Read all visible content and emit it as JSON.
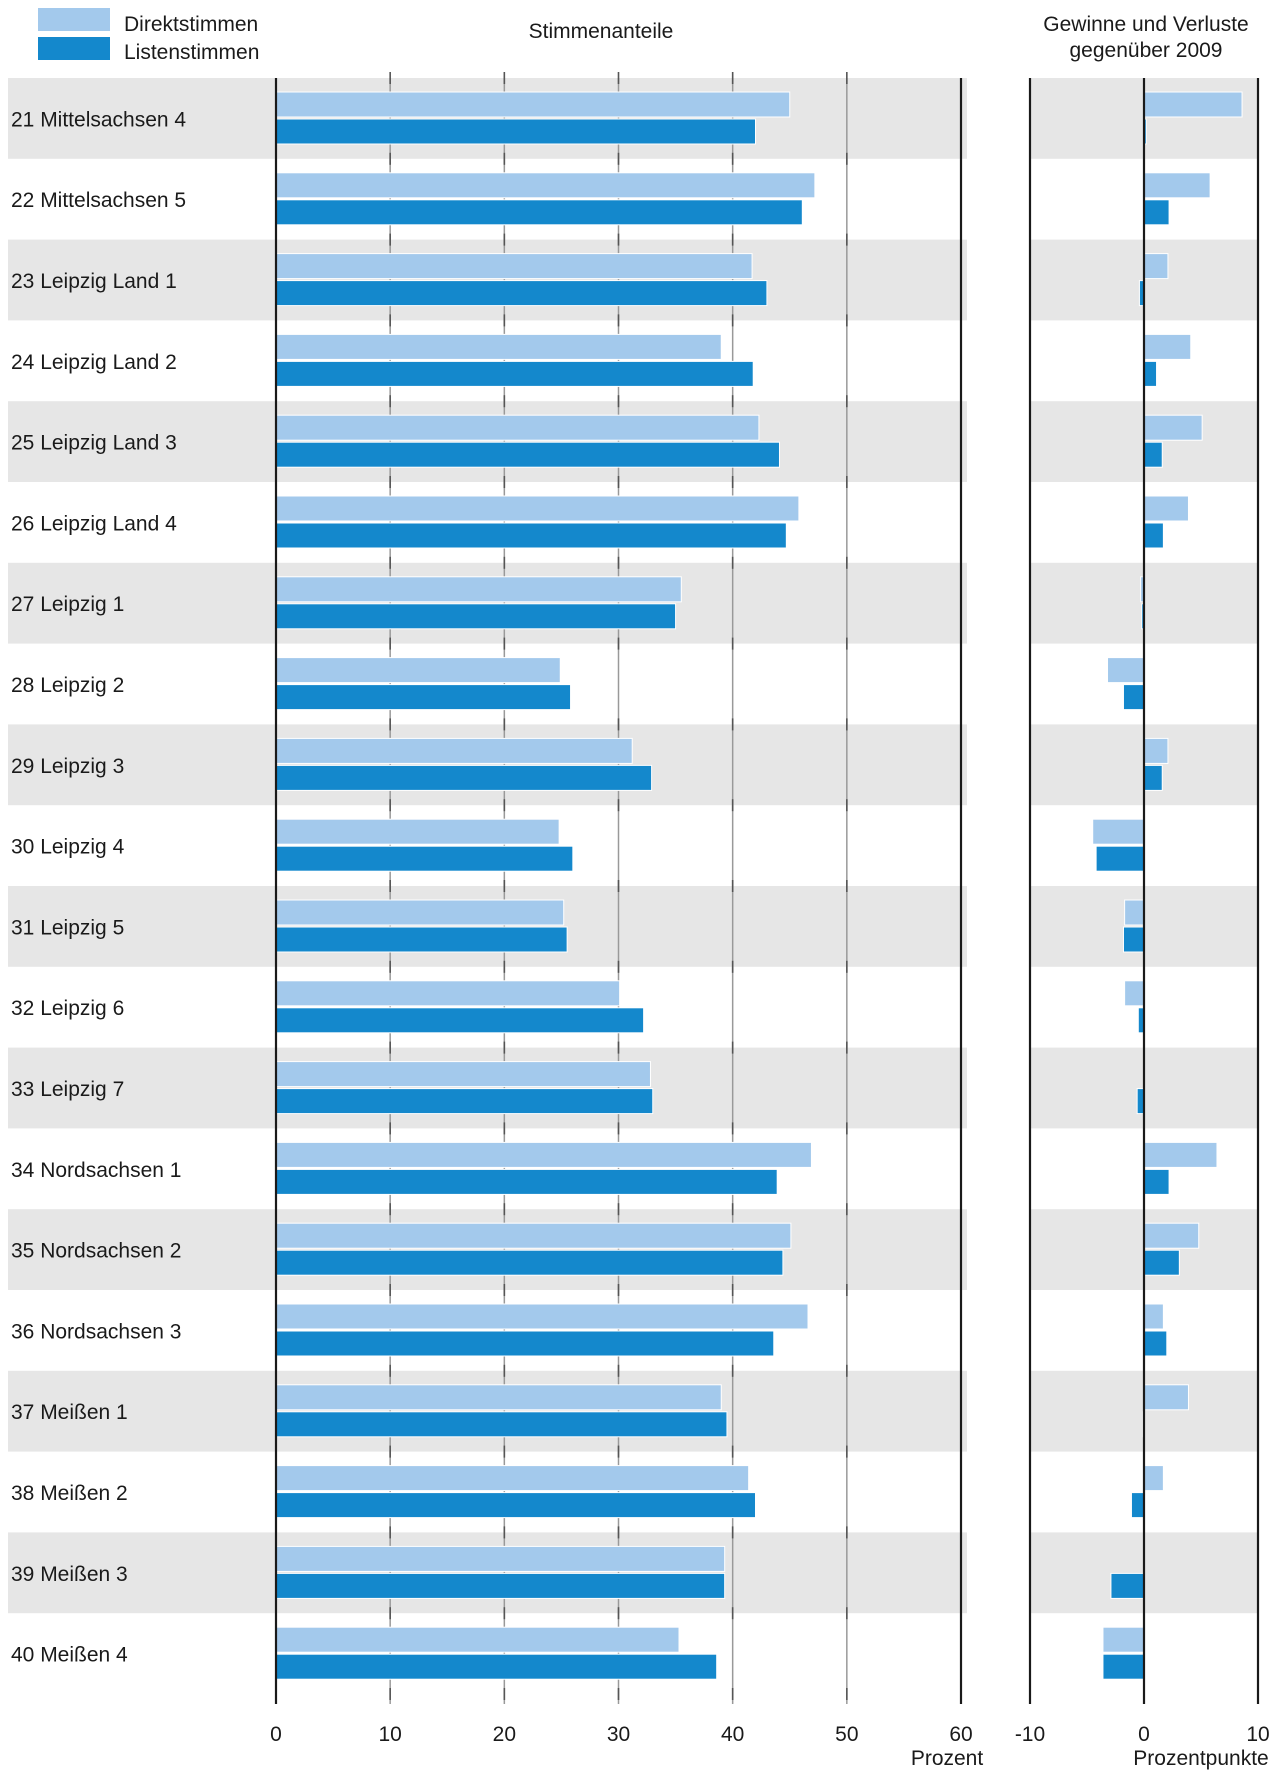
{
  "legend": {
    "direkt": "Direktstimmen",
    "listen": "Listenstimmen"
  },
  "colors": {
    "direkt": "#a3c9ec",
    "listen": "#1488cc",
    "band": "#e6e6e6",
    "grid": "#999999",
    "axis": "#1a1a1a"
  },
  "chart_data": [
    {
      "type": "bar",
      "orientation": "horizontal",
      "title": "Stimmenanteile",
      "xlabel": "Prozent",
      "xlim": [
        0,
        60
      ],
      "xticks": [
        0,
        10,
        20,
        30,
        40,
        50,
        60
      ],
      "categories": [
        "21 Mittelsachsen 4",
        "22 Mittelsachsen 5",
        "23 Leipzig Land 1",
        "24 Leipzig Land 2",
        "25 Leipzig Land 3",
        "26 Leipzig Land 4",
        "27 Leipzig 1",
        "28 Leipzig 2",
        "29 Leipzig 3",
        "30 Leipzig 4",
        "31 Leipzig 5",
        "32 Leipzig 6",
        "33 Leipzig 7",
        "34 Nordsachsen 1",
        "35 Nordsachsen 2",
        "36 Nordsachsen 3",
        "37 Meißen 1",
        "38 Meißen 2",
        "39 Meißen 3",
        "40 Meißen 4"
      ],
      "series": [
        {
          "name": "Direktstimmen",
          "values": [
            45.0,
            47.2,
            41.7,
            39.0,
            42.3,
            45.8,
            35.5,
            24.9,
            31.2,
            24.8,
            25.2,
            30.1,
            32.8,
            46.9,
            45.1,
            46.6,
            39.0,
            41.4,
            39.3,
            35.3
          ]
        },
        {
          "name": "Listenstimmen",
          "values": [
            42.0,
            46.1,
            43.0,
            41.8,
            44.1,
            44.7,
            35.0,
            25.8,
            32.9,
            26.0,
            25.5,
            32.2,
            33.0,
            43.9,
            44.4,
            43.6,
            39.5,
            42.0,
            39.3,
            38.6
          ]
        }
      ],
      "grid": true
    },
    {
      "type": "bar",
      "orientation": "horizontal",
      "title": "Gewinne und Verluste gegenüber 2009",
      "xlabel": "Prozentpunkte",
      "xlim": [
        -10,
        10
      ],
      "xticks": [
        -10,
        0,
        10
      ],
      "categories": [
        "21 Mittelsachsen 4",
        "22 Mittelsachsen 5",
        "23 Leipzig Land 1",
        "24 Leipzig Land 2",
        "25 Leipzig Land 3",
        "26 Leipzig Land 4",
        "27 Leipzig 1",
        "28 Leipzig 2",
        "29 Leipzig 3",
        "30 Leipzig 4",
        "31 Leipzig 5",
        "32 Leipzig 6",
        "33 Leipzig 7",
        "34 Nordsachsen 1",
        "35 Nordsachsen 2",
        "36 Nordsachsen 3",
        "37 Meißen 1",
        "38 Meißen 2",
        "39 Meißen 3",
        "40 Meißen 4"
      ],
      "series": [
        {
          "name": "Direktstimmen",
          "values": [
            8.6,
            5.8,
            2.1,
            4.1,
            5.1,
            3.9,
            -0.3,
            -3.2,
            2.1,
            -4.5,
            -1.7,
            -1.7,
            0.0,
            6.4,
            4.8,
            1.7,
            3.9,
            1.7,
            0.0,
            -3.6
          ]
        },
        {
          "name": "Listenstimmen",
          "values": [
            0.2,
            2.2,
            -0.4,
            1.1,
            1.6,
            1.7,
            -0.2,
            -1.8,
            1.6,
            -4.2,
            -1.8,
            -0.5,
            -0.6,
            2.2,
            3.1,
            2.0,
            -0.1,
            -1.1,
            -2.9,
            -3.6
          ]
        }
      ],
      "grid": false
    }
  ]
}
